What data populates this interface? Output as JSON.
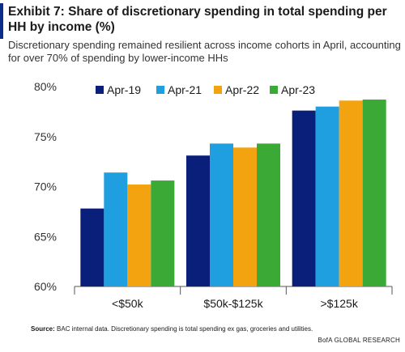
{
  "header": {
    "title": "Exhibit 7: Share of discretionary spending in total spending per HH by income (%)",
    "subtitle": "Discretionary spending remained resilient across income cohorts in April, accounting for over 70% of spending by lower-income HHs"
  },
  "footer": {
    "source_label": "Source:",
    "source_text": "BAC internal data. Discretionary spending  is total spending  ex gas, groceries and utilities.",
    "credit": "BofA GLOBAL RESEARCH"
  },
  "colors": {
    "accent": "#0b2d8a",
    "series": [
      "#0a1f7a",
      "#1f9fe0",
      "#f2a30f",
      "#3aa935"
    ]
  },
  "chart_data": {
    "type": "bar",
    "categories": [
      "<$50k",
      "$50k-$125k",
      ">$125k"
    ],
    "series": [
      {
        "name": "Apr-19",
        "values": [
          67.8,
          73.1,
          77.6
        ]
      },
      {
        "name": "Apr-21",
        "values": [
          71.4,
          74.3,
          78.0
        ]
      },
      {
        "name": "Apr-22",
        "values": [
          70.2,
          73.9,
          78.6
        ]
      },
      {
        "name": "Apr-23",
        "values": [
          70.6,
          74.3,
          78.7
        ]
      }
    ],
    "ylim": [
      60,
      80
    ],
    "yticks": [
      60,
      65,
      70,
      75,
      80
    ],
    "ytick_labels": [
      "60%",
      "65%",
      "70%",
      "75%",
      "80%"
    ],
    "legend_position": "top",
    "grid": false
  }
}
